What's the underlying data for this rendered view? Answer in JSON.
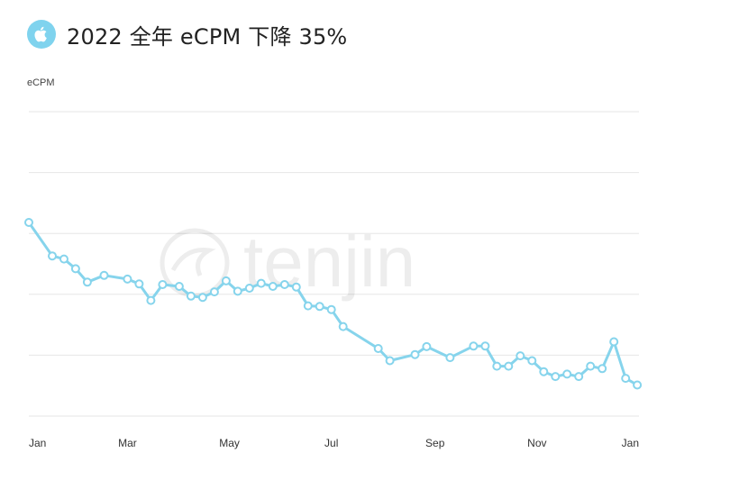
{
  "header": {
    "title": "2022 全年 eCPM 下降 35%",
    "icon": "apple-icon"
  },
  "watermark": {
    "text": "tenjin",
    "icon": "tenjin-logo-icon"
  },
  "colors": {
    "accent": "#7fd3ee",
    "line": "#86d4ec",
    "grid": "#e6e6e6"
  },
  "chart_data": {
    "type": "line",
    "title": "2022 全年 eCPM 下降 35%",
    "ylabel": "eCPM",
    "xlabel": "",
    "x_tick_labels": [
      "Jan",
      "Mar",
      "May",
      "Jul",
      "Sep",
      "Nov",
      "Jan"
    ],
    "y_tick_labels": [],
    "grid": true,
    "legend": "none",
    "ylim": [
      0,
      5
    ],
    "series": [
      {
        "name": "",
        "x": [
          "2022-01-01",
          "2022-01-15",
          "2022-01-22",
          "2022-01-29",
          "2022-02-05",
          "2022-02-15",
          "2022-03-01",
          "2022-03-08",
          "2022-03-15",
          "2022-03-22",
          "2022-04-01",
          "2022-04-08",
          "2022-04-15",
          "2022-04-22",
          "2022-04-29",
          "2022-05-06",
          "2022-05-13",
          "2022-05-20",
          "2022-05-27",
          "2022-06-03",
          "2022-06-10",
          "2022-06-17",
          "2022-06-24",
          "2022-07-01",
          "2022-07-08",
          "2022-07-29",
          "2022-08-05",
          "2022-08-20",
          "2022-08-27",
          "2022-09-10",
          "2022-09-24",
          "2022-10-01",
          "2022-10-08",
          "2022-10-15",
          "2022-10-22",
          "2022-10-29",
          "2022-11-05",
          "2022-11-12",
          "2022-11-19",
          "2022-11-26",
          "2022-12-03",
          "2022-12-10",
          "2022-12-17",
          "2022-12-24",
          "2022-12-31"
        ],
        "values": [
          3.18,
          2.63,
          2.58,
          2.42,
          2.2,
          2.31,
          2.25,
          2.17,
          1.9,
          2.16,
          2.13,
          1.97,
          1.95,
          2.04,
          2.22,
          2.05,
          2.1,
          2.18,
          2.13,
          2.16,
          2.12,
          1.81,
          1.8,
          1.75,
          1.47,
          1.11,
          0.91,
          1.01,
          1.14,
          0.96,
          1.15,
          1.15,
          0.82,
          0.82,
          0.99,
          0.91,
          0.73,
          0.65,
          0.69,
          0.65,
          0.82,
          0.78,
          1.22,
          0.62,
          0.51
        ]
      }
    ]
  }
}
